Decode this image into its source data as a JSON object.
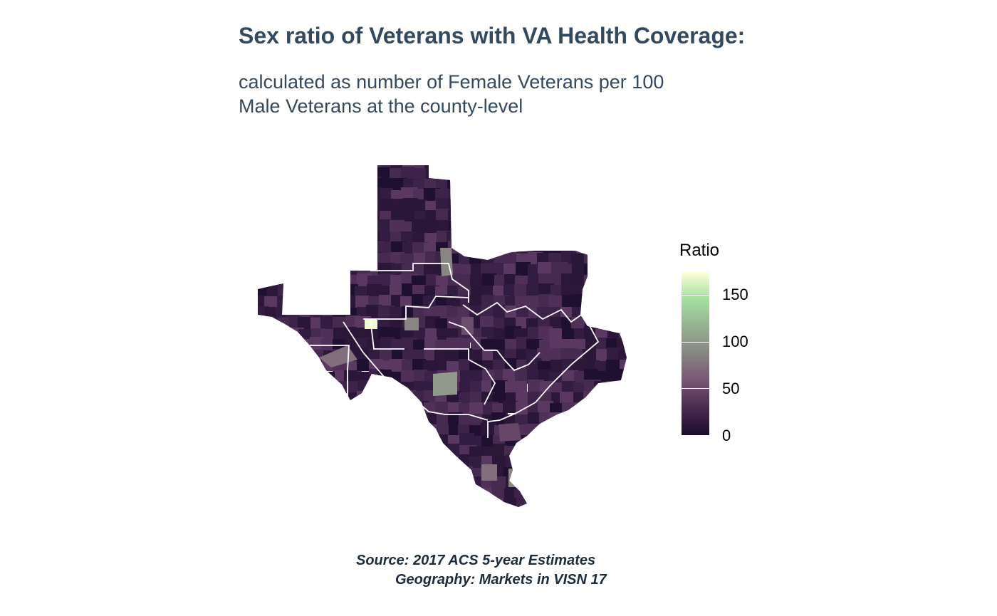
{
  "title": "Sex ratio of Veterans with VA Health Coverage:",
  "subtitle": {
    "line1": "calculated as number of Female Veterans per 100",
    "line2": "Male Veterans at the county-level"
  },
  "legend": {
    "title": "Ratio",
    "ticks": [
      "0",
      "50",
      "100",
      "150"
    ],
    "range": [
      0,
      175
    ],
    "colors": [
      "#1a0c2c",
      "#4d2c52",
      "#7a5a76",
      "#8f9a8a",
      "#a5e0a0",
      "#ffffd9"
    ]
  },
  "caption": {
    "line1": "Source: 2017 ACS 5-year Estimates",
    "line2": "Geography: Markets in VISN 17"
  },
  "map": {
    "state": "Texas",
    "border_color": "#ffffff",
    "highlight_counties": [
      {
        "area": "bright-west",
        "ratio": 170
      },
      {
        "area": "far-west",
        "ratio": 85
      },
      {
        "area": "panhandle-south",
        "ratio": 95
      },
      {
        "area": "west-central",
        "ratio": 95
      },
      {
        "area": "central",
        "ratio": 105
      },
      {
        "area": "east-central",
        "ratio": 65
      },
      {
        "area": "south-coast",
        "ratio": 60
      },
      {
        "area": "rio-grande-a",
        "ratio": 85
      },
      {
        "area": "rio-grande-b",
        "ratio": 95
      }
    ]
  }
}
